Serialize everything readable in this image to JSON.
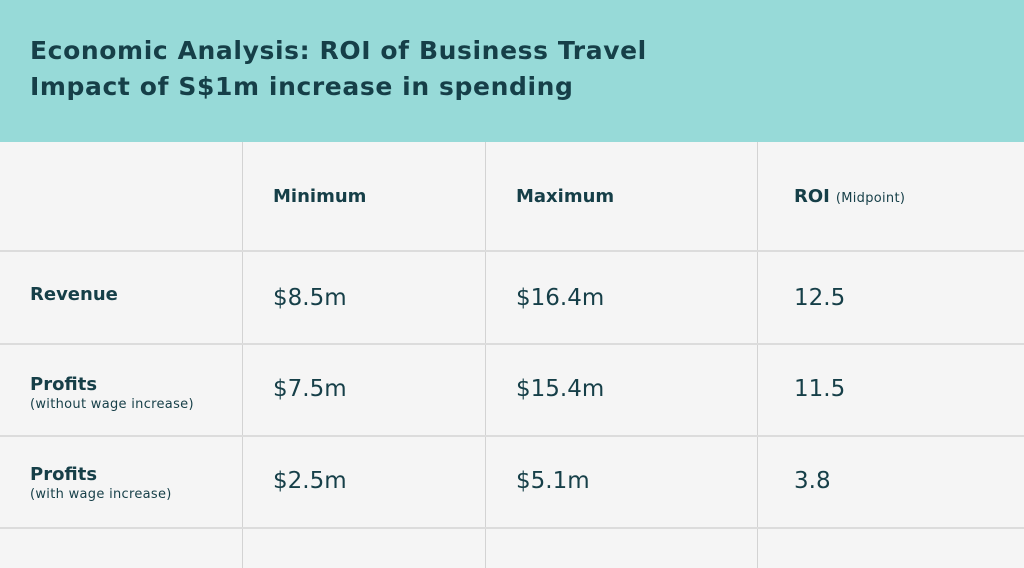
{
  "header": {
    "title_line1": "Economic Analysis: ROI of Business Travel",
    "title_line2": "Impact of S$1m increase in spending"
  },
  "colors": {
    "header_background": "#97dad8",
    "text": "#163f48",
    "table_background": "#f5f5f5",
    "grid": "#d3d3d3"
  },
  "chart_data": {
    "type": "table",
    "title": "Economic Analysis: ROI of Business Travel",
    "subtitle": "Impact of S$1m increase in spending",
    "columns": [
      {
        "label": "Minimum",
        "note": ""
      },
      {
        "label": "Maximum",
        "note": ""
      },
      {
        "label": "ROI",
        "note": "(Midpoint)"
      }
    ],
    "rows": [
      {
        "label": "Revenue",
        "note": "",
        "values": [
          "$8.5m",
          "$16.4m",
          "12.5"
        ]
      },
      {
        "label": "Profits",
        "note": "(without wage increase)",
        "values": [
          "$7.5m",
          "$15.4m",
          "11.5"
        ]
      },
      {
        "label": "Profits",
        "note": "(with wage increase)",
        "values": [
          "$2.5m",
          "$5.1m",
          "3.8"
        ]
      }
    ]
  }
}
